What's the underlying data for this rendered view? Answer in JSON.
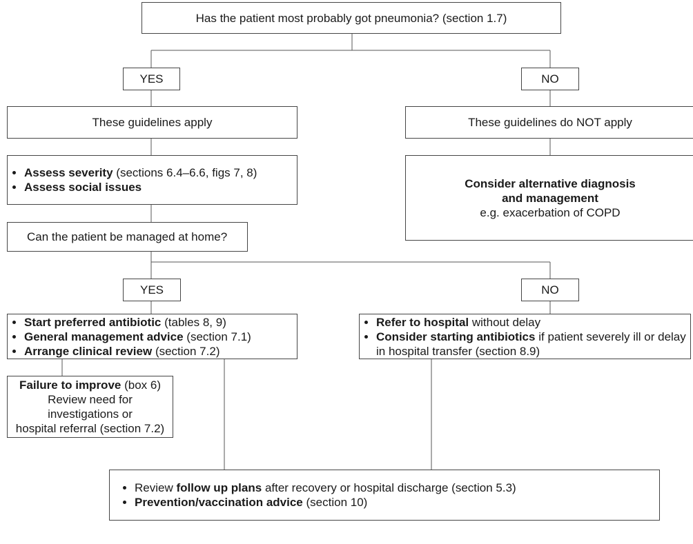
{
  "question": "Has the patient most probably got pneumonia? (section 1.7)",
  "first_answers": {
    "yes": "YES",
    "no": "NO"
  },
  "applies": "These guidelines apply",
  "not_applies": "These guidelines do NOT apply",
  "assess": [
    [
      {
        "text": "Assess severity",
        "bold": true
      },
      {
        "text": "(sections 6.4–6.6, figs 7, 8)"
      }
    ],
    [
      {
        "text": "Assess social issues",
        "bold": true
      }
    ]
  ],
  "alternative": {
    "lines": [
      "Consider alternative diagnosis",
      "and management"
    ],
    "note": "e.g. exacerbation of COPD"
  },
  "home_question": "Can the patient be managed at home?",
  "second_answers": {
    "yes": "YES",
    "no": "NO"
  },
  "home_actions": [
    [
      {
        "text": "Start preferred antibiotic",
        "bold": true
      },
      {
        "text": "(tables 8, 9)"
      }
    ],
    [
      {
        "text": "General management advice",
        "bold": true
      },
      {
        "text": "(section 7.1)"
      }
    ],
    [
      {
        "text": "Arrange clinical review",
        "bold": true
      },
      {
        "text": "(section 7.2)"
      }
    ]
  ],
  "hospital_actions": [
    [
      {
        "text": "Refer to hospital",
        "bold": true
      },
      {
        "text": "without delay"
      }
    ],
    [
      {
        "text": "Consider starting antibiotics",
        "bold": true
      },
      {
        "text": "if patient severely ill or delay in hospital transfer (section 8.9)"
      }
    ]
  ],
  "failure": {
    "heading": [
      {
        "text": "Failure to improve",
        "bold": true
      },
      {
        "text": "(box 6)"
      }
    ],
    "lines": [
      "Review need for",
      "investigations or",
      "hospital referral (section 7.2)"
    ]
  },
  "final_actions": [
    [
      {
        "text": "Review"
      },
      {
        "text": "follow up plans",
        "bold": true
      },
      {
        "text": "after recovery or hospital discharge (section 5.3)"
      }
    ],
    [
      {
        "text": "Prevention/vaccination advice",
        "bold": true
      },
      {
        "text": "(section 10)"
      }
    ]
  ]
}
